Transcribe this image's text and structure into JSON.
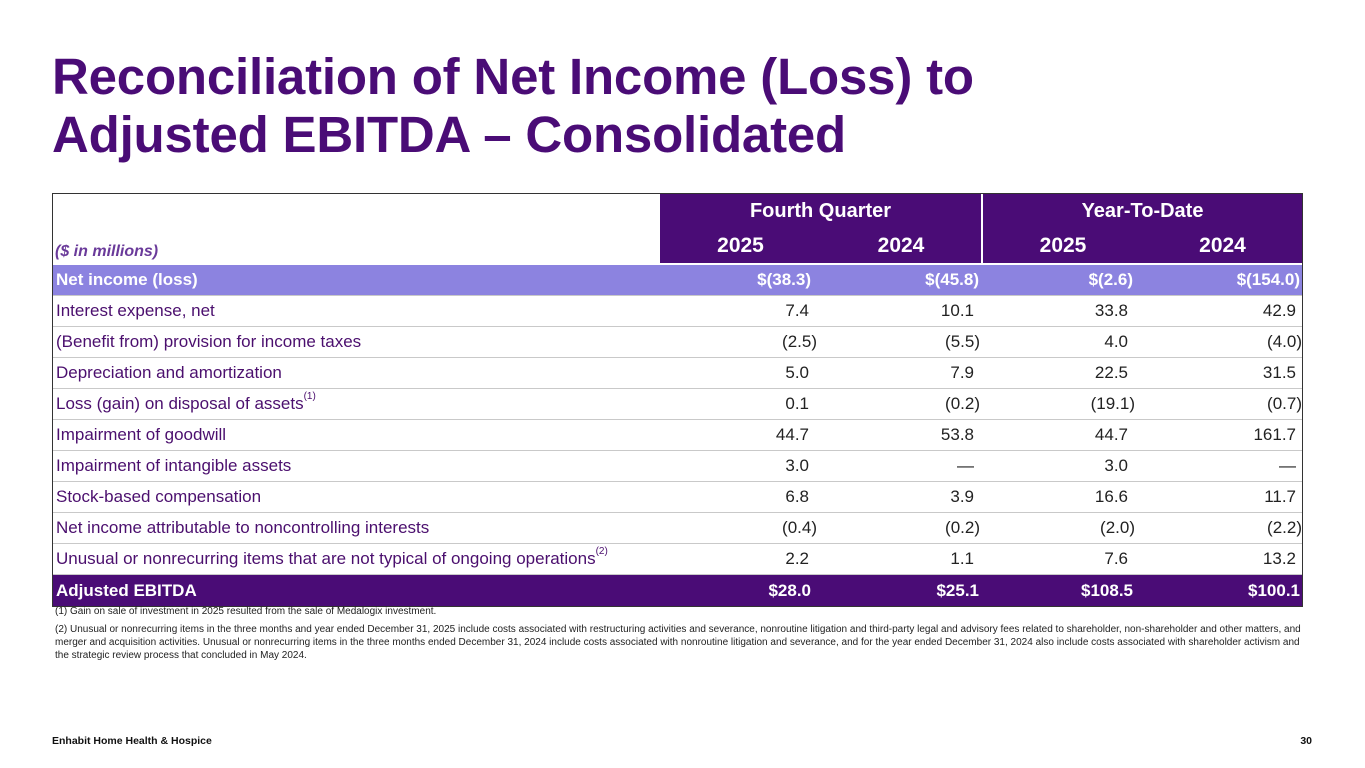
{
  "title_line1": "Reconciliation of Net Income (Loss) to",
  "title_line2": "Adjusted EBITDA – Consolidated",
  "table": {
    "units_label": "($ in millions)",
    "group_headers": [
      "Fourth Quarter",
      "Year-To-Date"
    ],
    "year_headers": [
      "2025",
      "2024",
      "2025",
      "2024"
    ],
    "rows": [
      {
        "label": "Net income (loss)",
        "sup": "",
        "values": [
          "$(38.3)",
          "$(45.8)",
          "$(2.6)",
          "$(154.0)"
        ]
      },
      {
        "label": "Interest expense, net",
        "sup": "",
        "values": [
          "7.4",
          "10.1",
          "33.8",
          "42.9"
        ]
      },
      {
        "label": "(Benefit from) provision for income taxes",
        "sup": "",
        "values": [
          "(2.5)",
          "(5.5)",
          "4.0",
          "(4.0)"
        ]
      },
      {
        "label": "Depreciation and amortization",
        "sup": "",
        "values": [
          "5.0",
          "7.9",
          "22.5",
          "31.5"
        ]
      },
      {
        "label": "Loss (gain) on disposal of assets",
        "sup": "(1)",
        "values": [
          "0.1",
          "(0.2)",
          "(19.1)",
          "(0.7)"
        ]
      },
      {
        "label": "Impairment of goodwill",
        "sup": "",
        "values": [
          "44.7",
          "53.8",
          "44.7",
          "161.7"
        ]
      },
      {
        "label": "Impairment of intangible assets",
        "sup": "",
        "values": [
          "3.0",
          "—",
          "3.0",
          "—"
        ]
      },
      {
        "label": "Stock-based compensation",
        "sup": "",
        "values": [
          "6.8",
          "3.9",
          "16.6",
          "11.7"
        ]
      },
      {
        "label": "Net income attributable to noncontrolling interests",
        "sup": "",
        "values": [
          "(0.4)",
          "(0.2)",
          "(2.0)",
          "(2.2)"
        ]
      },
      {
        "label": "Unusual or nonrecurring items that are not typical of ongoing operations",
        "sup": "(2)",
        "values": [
          "2.2",
          "1.1",
          "7.6",
          "13.2"
        ]
      },
      {
        "label": "Adjusted EBITDA",
        "sup": "",
        "values": [
          "$28.0",
          "$25.1",
          "$108.5",
          "$100.1"
        ]
      }
    ]
  },
  "notes": {
    "note1": "(1) Gain on sale of investment in 2025 resulted from the sale of Medalogix investment.",
    "note2": "(2) Unusual or nonrecurring items in the three months and year ended December 31, 2025 include costs associated with restructuring activities and severance, nonroutine litigation and third-party legal and advisory fees related to shareholder, non-shareholder and other matters, and merger and acquisition activities. Unusual or nonrecurring items in the three months ended December 31, 2024 include costs associated with nonroutine litigation and severance, and for the year ended December 31, 2024 also include costs associated with shareholder activism and the strategic review process that concluded in May 2024."
  },
  "footer": {
    "company": "Enhabit Home Health & Hospice",
    "page_number": "30"
  },
  "colors": {
    "brand_purple": "#4a0c76",
    "highlight_lavender": "#8c83e0"
  }
}
